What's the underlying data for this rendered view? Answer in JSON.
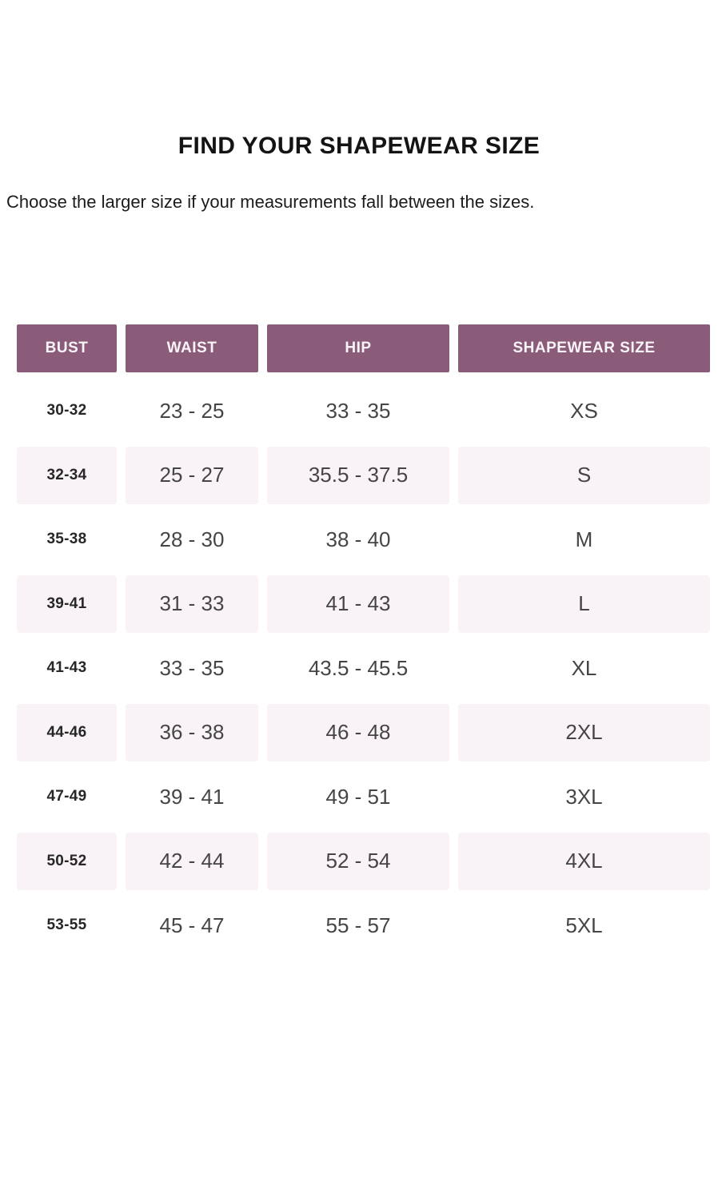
{
  "page": {
    "title": "FIND YOUR SHAPEWEAR SIZE",
    "subtitle": "Choose the larger size if your measurements fall between the sizes."
  },
  "table": {
    "columns": [
      "BUST",
      "WAIST",
      "HIP",
      "SHAPEWEAR SIZE"
    ],
    "rows": [
      {
        "bust": "30-32",
        "waist": "23 - 25",
        "hip": "33 - 35",
        "size": "XS"
      },
      {
        "bust": "32-34",
        "waist": "25 - 27",
        "hip": "35.5 - 37.5",
        "size": "S"
      },
      {
        "bust": "35-38",
        "waist": "28 - 30",
        "hip": "38 - 40",
        "size": "M"
      },
      {
        "bust": "39-41",
        "waist": "31 - 33",
        "hip": "41 - 43",
        "size": "L"
      },
      {
        "bust": "41-43",
        "waist": "33 - 35",
        "hip": "43.5 - 45.5",
        "size": "XL"
      },
      {
        "bust": "44-46",
        "waist": "36 - 38",
        "hip": "46 - 48",
        "size": "2XL"
      },
      {
        "bust": "47-49",
        "waist": "39 - 41",
        "hip": "49 - 51",
        "size": "3XL"
      },
      {
        "bust": "50-52",
        "waist": "42 - 44",
        "hip": "52 - 54",
        "size": "4XL"
      },
      {
        "bust": "53-55",
        "waist": "45 - 47",
        "hip": "55 - 57",
        "size": "5XL"
      }
    ]
  },
  "colors": {
    "header_bg": "#8b5c7a",
    "header_text": "#faf4f8",
    "row_alt_bg": "#f9f3f7",
    "row_bg": "#ffffff",
    "title_text": "#141414",
    "data_text": "#454545",
    "bust_text": "#272727"
  }
}
